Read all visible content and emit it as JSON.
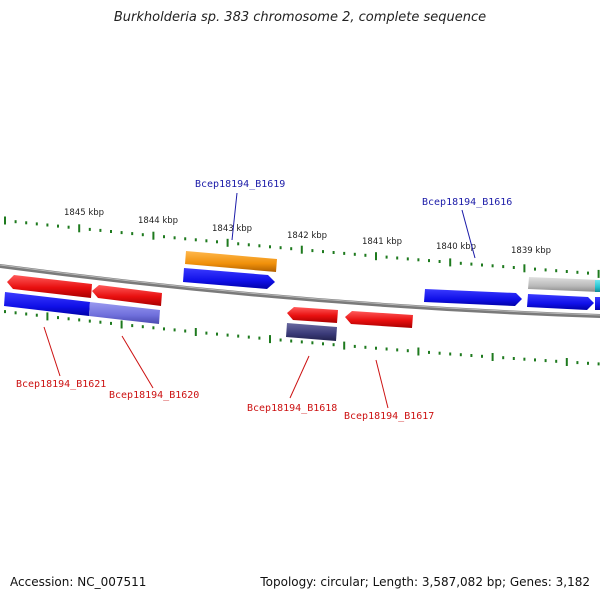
{
  "title": "Burkholderia sp. 383 chromosome 2, complete sequence",
  "footer": {
    "accession": "Accession: NC_007511",
    "topology": "Topology: circular; Length: 3,587,082 bp; Genes: 3,182"
  },
  "colors": {
    "backbone": "#7a7a7a",
    "ticks": "#1e7a1e",
    "label_forward": "#1a1aa8",
    "label_reverse": "#cc1111",
    "gene_red": "#ee1111",
    "gene_blue": "#1111ee",
    "gene_orange": "#f0900a",
    "gene_gray": "#b9b9b9",
    "gene_navy": "#3a3a78",
    "gene_lavender": "#6f6fdc",
    "gene_cyan": "#22c4d0"
  },
  "ruler": {
    "kbp_labels": [
      "1845 kbp",
      "1844 kbp",
      "1843 kbp",
      "1842 kbp",
      "1841 kbp",
      "1840 kbp",
      "1839 kbp"
    ]
  },
  "genes": {
    "forward_labels": [
      "Bcep18194_B1619",
      "Bcep18194_B1616"
    ],
    "reverse_labels": [
      "Bcep18194_B1621",
      "Bcep18194_B1620",
      "Bcep18194_B1618",
      "Bcep18194_B1617"
    ]
  }
}
